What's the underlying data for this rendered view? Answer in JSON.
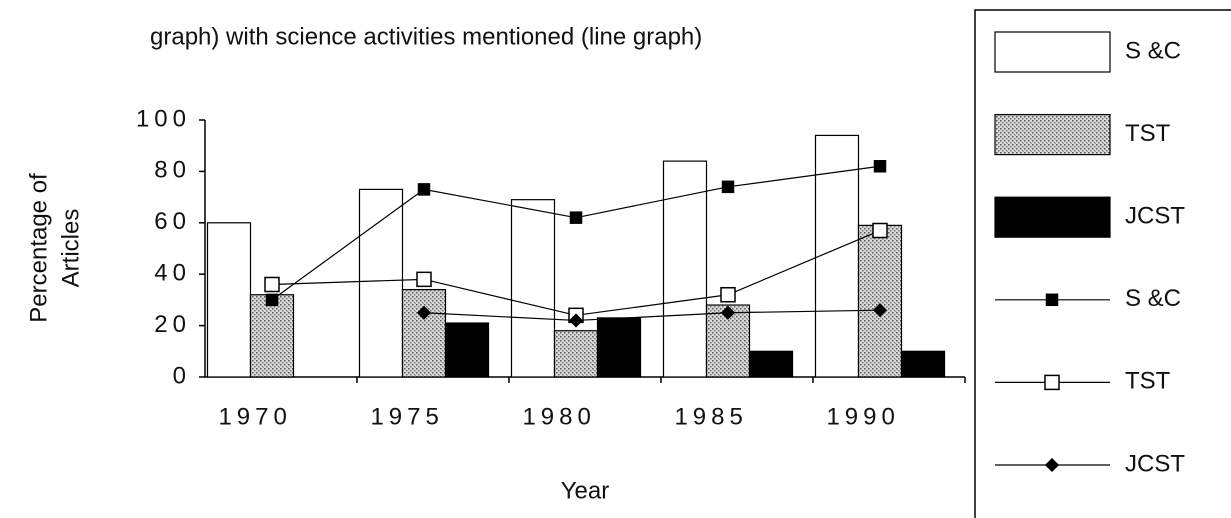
{
  "chart_data": {
    "type": "bar",
    "title": "graph) with science activities mentioned (line graph)",
    "x_label": "Year",
    "y_label": [
      "Percentage of",
      "Articles"
    ],
    "categories": [
      "1970",
      "1975",
      "1980",
      "1985",
      "1990"
    ],
    "series": [
      {
        "name": "S &C",
        "kind": "bar",
        "color": "#ffffff",
        "values": [
          60,
          73,
          69,
          84,
          94
        ]
      },
      {
        "name": "TST",
        "kind": "bar",
        "color": "#b8b8b8",
        "values": [
          32,
          34,
          18,
          28,
          59
        ]
      },
      {
        "name": "JCST",
        "kind": "bar",
        "color": "#000000",
        "values": [
          null,
          21,
          23,
          10,
          10
        ]
      },
      {
        "name": "S &C",
        "kind": "line",
        "marker": "filled-square",
        "color": "#000000",
        "values": [
          30,
          73,
          62,
          74,
          82
        ]
      },
      {
        "name": "TST",
        "kind": "line",
        "marker": "open-square",
        "color": "#000000",
        "values": [
          36,
          38,
          24,
          32,
          57
        ]
      },
      {
        "name": "JCST",
        "kind": "line",
        "marker": "diamond",
        "color": "#000000",
        "values": [
          null,
          25,
          22,
          25,
          26
        ]
      }
    ],
    "ylim": [
      0,
      100
    ],
    "yticks": [
      0,
      20,
      40,
      60,
      80,
      100
    ],
    "grid": false,
    "legend": "right"
  }
}
